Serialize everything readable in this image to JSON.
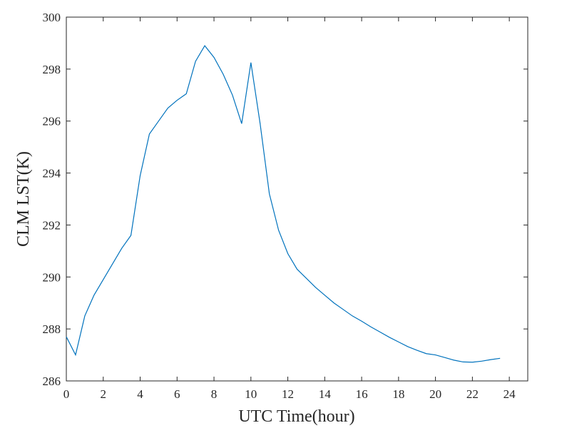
{
  "chart_data": {
    "type": "line",
    "xlabel": "UTC Time(hour)",
    "ylabel": "CLM LST(K)",
    "x": [
      0,
      0.5,
      1,
      1.5,
      2,
      2.5,
      3,
      3.5,
      4,
      4.5,
      5,
      5.5,
      6,
      6.5,
      7,
      7.5,
      8,
      8.5,
      9,
      9.5,
      10,
      10.5,
      11,
      11.5,
      12,
      12.5,
      13,
      13.5,
      14,
      14.5,
      15,
      15.5,
      16,
      16.5,
      17,
      17.5,
      18,
      18.5,
      19,
      19.5,
      20,
      20.5,
      21,
      21.5,
      22,
      22.5,
      23,
      23.5
    ],
    "values": [
      287.7,
      287.0,
      288.5,
      289.3,
      289.9,
      290.5,
      291.1,
      291.6,
      293.9,
      295.5,
      296.0,
      296.5,
      296.8,
      297.05,
      298.3,
      298.9,
      298.45,
      297.8,
      297.0,
      295.9,
      298.25,
      295.9,
      293.2,
      291.8,
      290.9,
      290.3,
      289.95,
      289.6,
      289.3,
      289.0,
      288.75,
      288.5,
      288.3,
      288.08,
      287.88,
      287.68,
      287.5,
      287.32,
      287.18,
      287.05,
      287.0,
      286.9,
      286.8,
      286.73,
      286.72,
      286.76,
      286.82,
      286.87
    ],
    "color": "#0072bd",
    "xlim": [
      0,
      25
    ],
    "xticks": [
      0,
      2,
      4,
      6,
      8,
      10,
      12,
      14,
      16,
      18,
      20,
      22,
      24
    ],
    "ylim": [
      286,
      300
    ],
    "yticks": [
      286,
      288,
      290,
      292,
      294,
      296,
      298,
      300
    ]
  }
}
